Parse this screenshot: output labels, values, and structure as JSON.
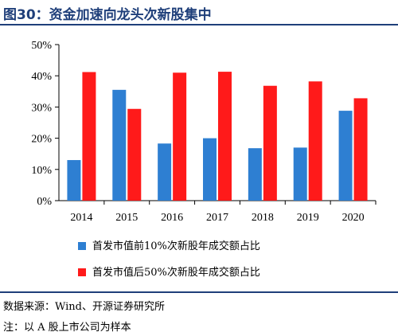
{
  "figure": {
    "title": "图30：资金加速向龙头次新股集中"
  },
  "footer": {
    "source": "数据来源：Wind、开源证券研究所",
    "note": "注：以 A 股上市公司为样本"
  },
  "colors": {
    "title": "#1f3f7a",
    "blue": "#2e7fd2",
    "red": "#ff1a1a",
    "axis": "#000000"
  },
  "chart_data": {
    "type": "bar",
    "categories": [
      "2014",
      "2015",
      "2016",
      "2017",
      "2018",
      "2019",
      "2020"
    ],
    "series": [
      {
        "name": "首发市值前10%次新股年成交额占比",
        "values": [
          13,
          35.5,
          18.3,
          20,
          16.8,
          17,
          28.8
        ]
      },
      {
        "name": "首发市值后50%次新股年成交额占比",
        "values": [
          41.2,
          29.4,
          41,
          41.3,
          36.8,
          38.2,
          32.8
        ]
      }
    ],
    "yticks": [
      "0%",
      "10%",
      "20%",
      "30%",
      "40%",
      "50%"
    ],
    "ylim": [
      0,
      50
    ],
    "title": "",
    "xlabel": "",
    "ylabel": "",
    "grid": false,
    "legend_position": "bottom"
  }
}
